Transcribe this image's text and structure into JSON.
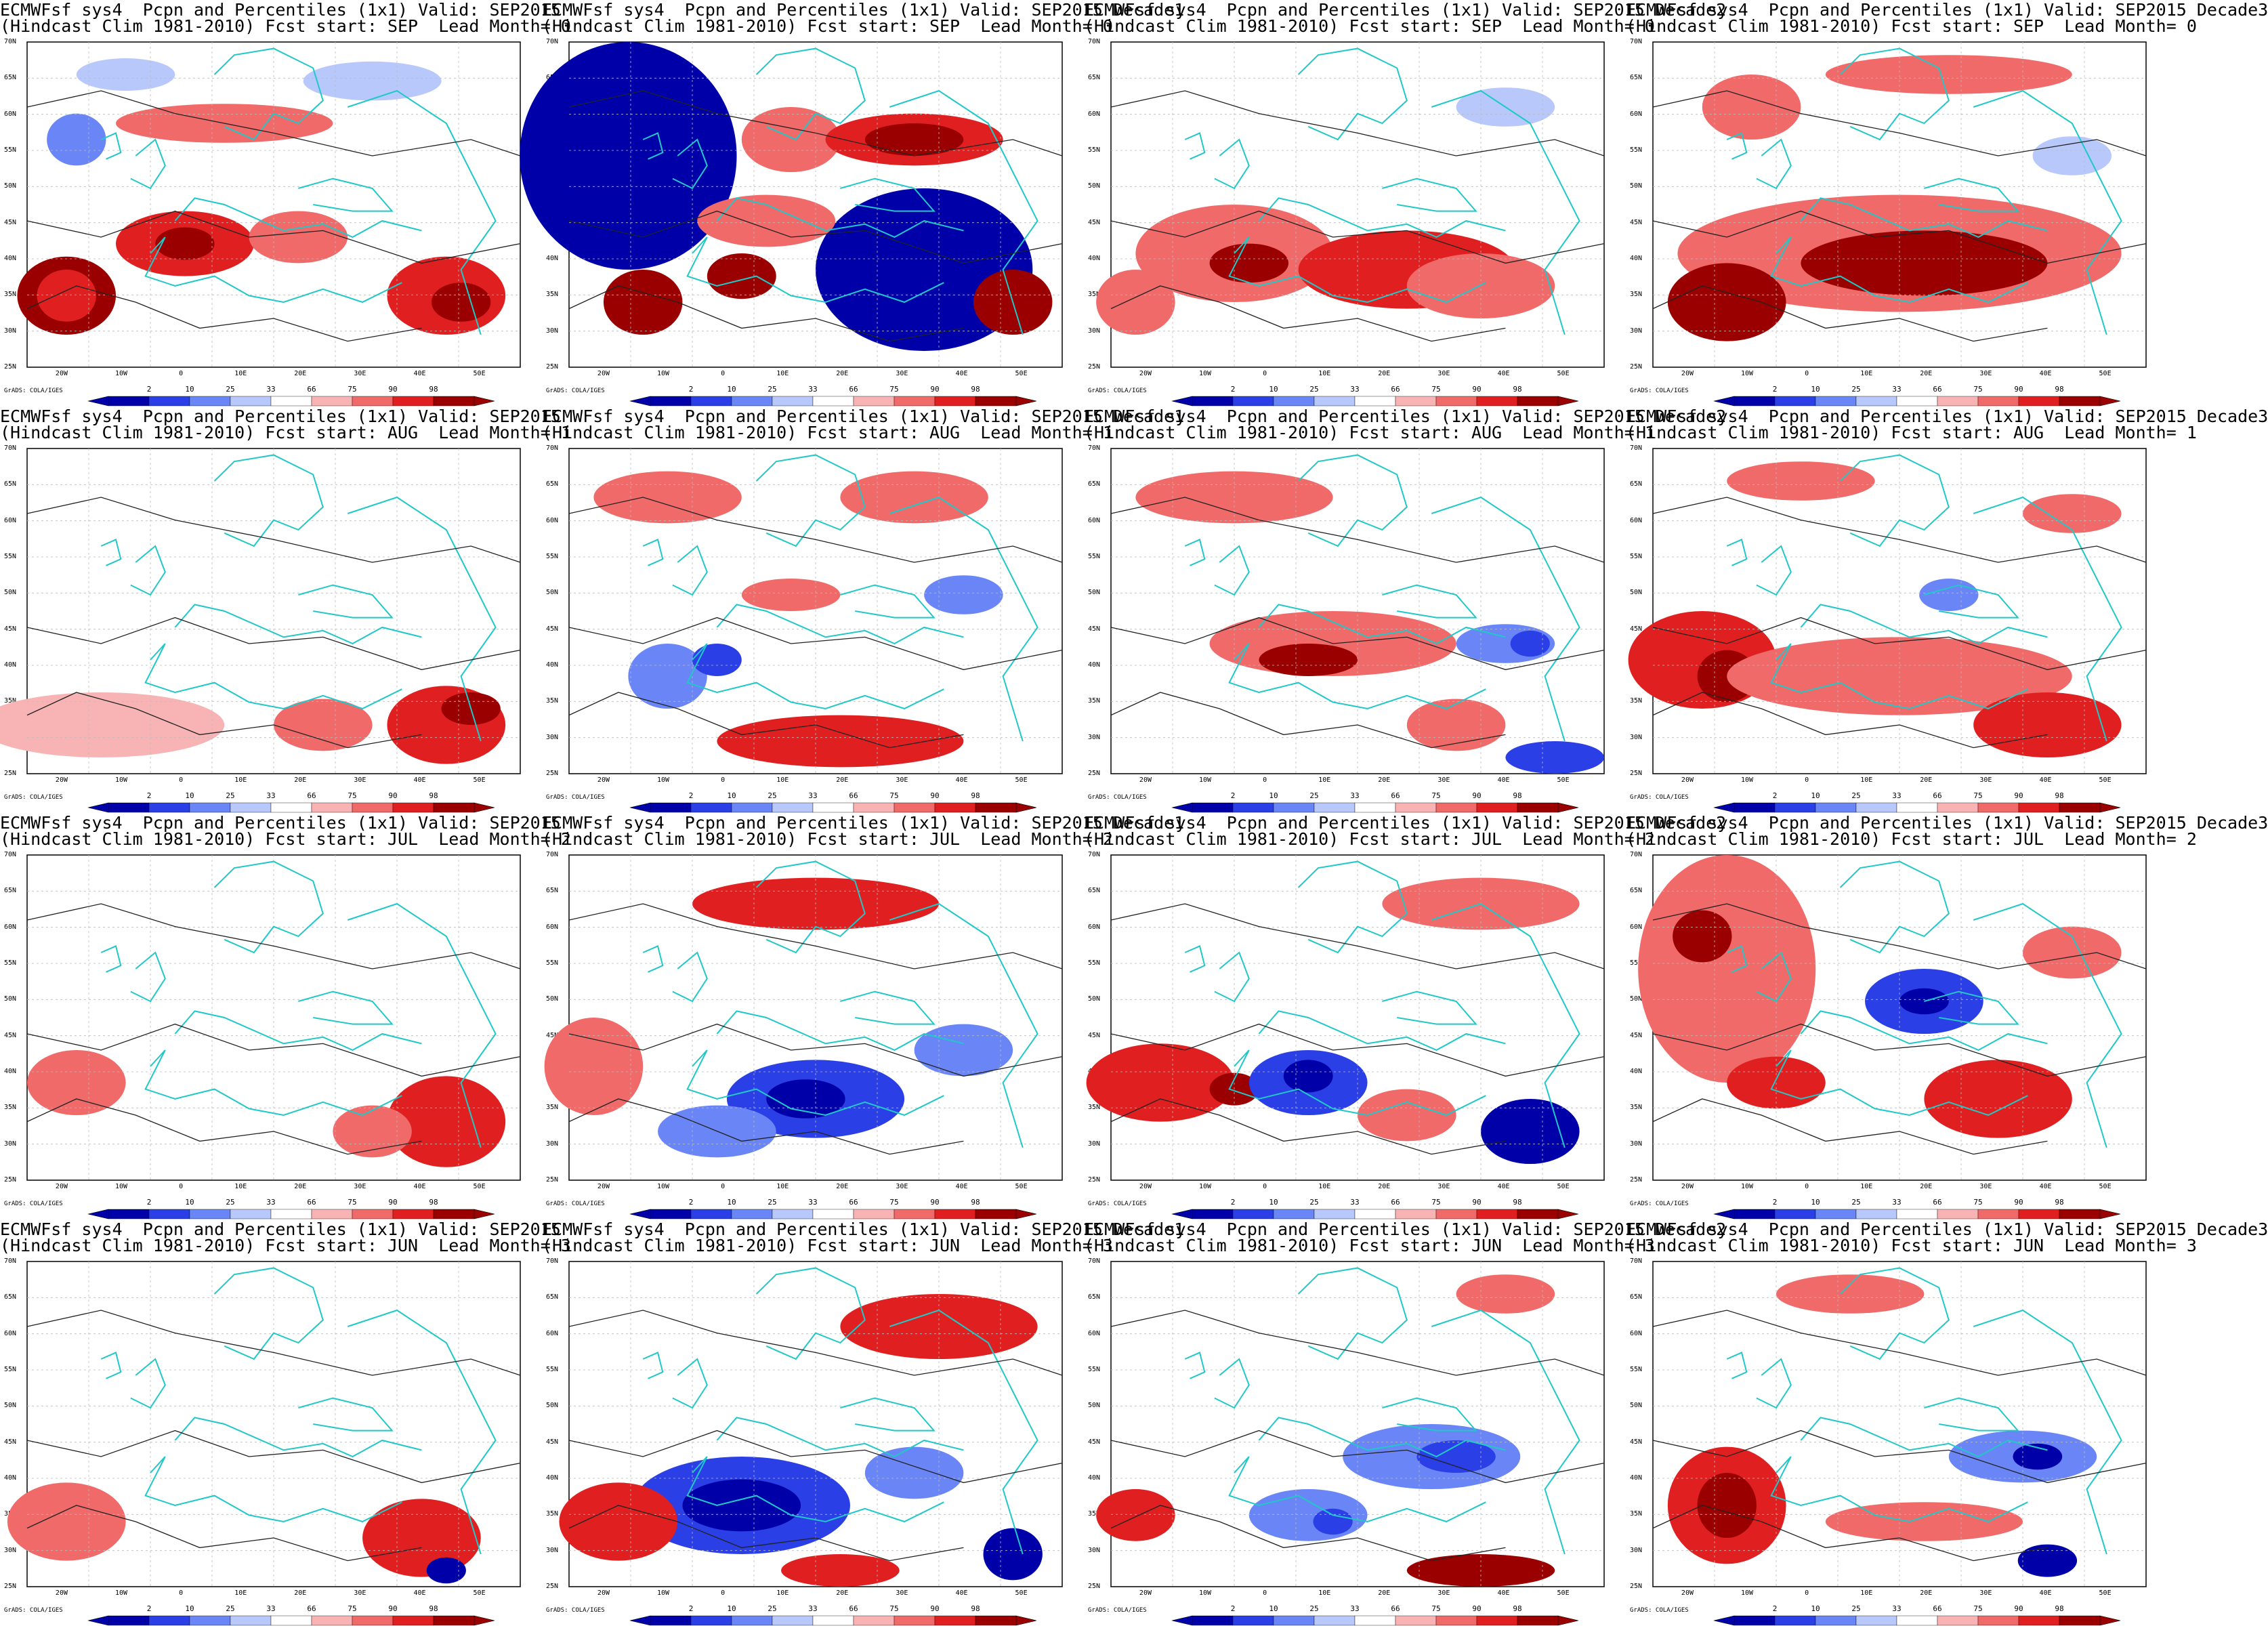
{
  "credit": "GrADS: COLA/IGES",
  "colorbar": {
    "ticks": [
      "2",
      "10",
      "25",
      "33",
      "66",
      "75",
      "90",
      "98"
    ],
    "colors": [
      "#0000a8",
      "#2b3fe6",
      "#6a86f6",
      "#b8c8fb",
      "#ffffff",
      "#f8b4b4",
      "#f06a6a",
      "#e02020",
      "#9a0000"
    ]
  },
  "lat_labels": [
    "70N",
    "65N",
    "60N",
    "55N",
    "50N",
    "45N",
    "40N",
    "35N",
    "30N",
    "25N"
  ],
  "lon_labels": [
    "20W",
    "10W",
    "0",
    "10E",
    "20E",
    "30E",
    "40E",
    "50E"
  ],
  "panels": [
    {
      "title1": "ECMWFsf sys4  Pcpn and Percentiles (1x1) Valid: SEP2015",
      "title2": "(Hindcast Clim 1981-2010) Fcst start: SEP  Lead Month= 0"
    },
    {
      "title1": "ECMWFsf sys4  Pcpn and Percentiles (1x1) Valid: SEP2015 Decade1",
      "title2": "(Hindcast Clim 1981-2010) Fcst start: SEP  Lead Month= 0"
    },
    {
      "title1": "ECMWFsf sys4  Pcpn and Percentiles (1x1) Valid: SEP2015 Decade2",
      "title2": "(Hindcast Clim 1981-2010) Fcst start: SEP  Lead Month= 0"
    },
    {
      "title1": "ECMWFsf sys4  Pcpn and Percentiles (1x1) Valid: SEP2015 Decade3",
      "title2": "(Hindcast Clim 1981-2010) Fcst start: SEP  Lead Month= 0"
    },
    {
      "title1": "ECMWFsf sys4  Pcpn and Percentiles (1x1) Valid: SEP2015",
      "title2": "(Hindcast Clim 1981-2010) Fcst start: AUG  Lead Month= 1"
    },
    {
      "title1": "ECMWFsf sys4  Pcpn and Percentiles (1x1) Valid: SEP2015 Decade1",
      "title2": "(Hindcast Clim 1981-2010) Fcst start: AUG  Lead Month= 1"
    },
    {
      "title1": "ECMWFsf sys4  Pcpn and Percentiles (1x1) Valid: SEP2015 Decade2",
      "title2": "(Hindcast Clim 1981-2010) Fcst start: AUG  Lead Month= 1"
    },
    {
      "title1": "ECMWFsf sys4  Pcpn and Percentiles (1x1) Valid: SEP2015 Decade3",
      "title2": "(Hindcast Clim 1981-2010) Fcst start: AUG  Lead Month= 1"
    },
    {
      "title1": "ECMWFsf sys4  Pcpn and Percentiles (1x1) Valid: SEP2015",
      "title2": "(Hindcast Clim 1981-2010) Fcst start: JUL  Lead Month= 2"
    },
    {
      "title1": "ECMWFsf sys4  Pcpn and Percentiles (1x1) Valid: SEP2015 Decade1",
      "title2": "(Hindcast Clim 1981-2010) Fcst start: JUL  Lead Month= 2"
    },
    {
      "title1": "ECMWFsf sys4  Pcpn and Percentiles (1x1) Valid: SEP2015 Decade2",
      "title2": "(Hindcast Clim 1981-2010) Fcst start: JUL  Lead Month= 2"
    },
    {
      "title1": "ECMWFsf sys4  Pcpn and Percentiles (1x1) Valid: SEP2015 Decade3",
      "title2": "(Hindcast Clim 1981-2010) Fcst start: JUL  Lead Month= 2"
    },
    {
      "title1": "ECMWFsf sys4  Pcpn and Percentiles (1x1) Valid: SEP2015",
      "title2": "(Hindcast Clim 1981-2010) Fcst start: JUN  Lead Month= 3"
    },
    {
      "title1": "ECMWFsf sys4  Pcpn and Percentiles (1x1) Valid: SEP2015 Decade1",
      "title2": "(Hindcast Clim 1981-2010) Fcst start: JUN  Lead Month= 3"
    },
    {
      "title1": "ECMWFsf sys4  Pcpn and Percentiles (1x1) Valid: SEP2015 Decade2",
      "title2": "(Hindcast Clim 1981-2010) Fcst start: JUN  Lead Month= 3"
    },
    {
      "title1": "ECMWFsf sys4  Pcpn and Percentiles (1x1) Valid: SEP2015 Decade3",
      "title2": "(Hindcast Clim 1981-2010) Fcst start: JUN  Lead Month= 3"
    }
  ]
}
